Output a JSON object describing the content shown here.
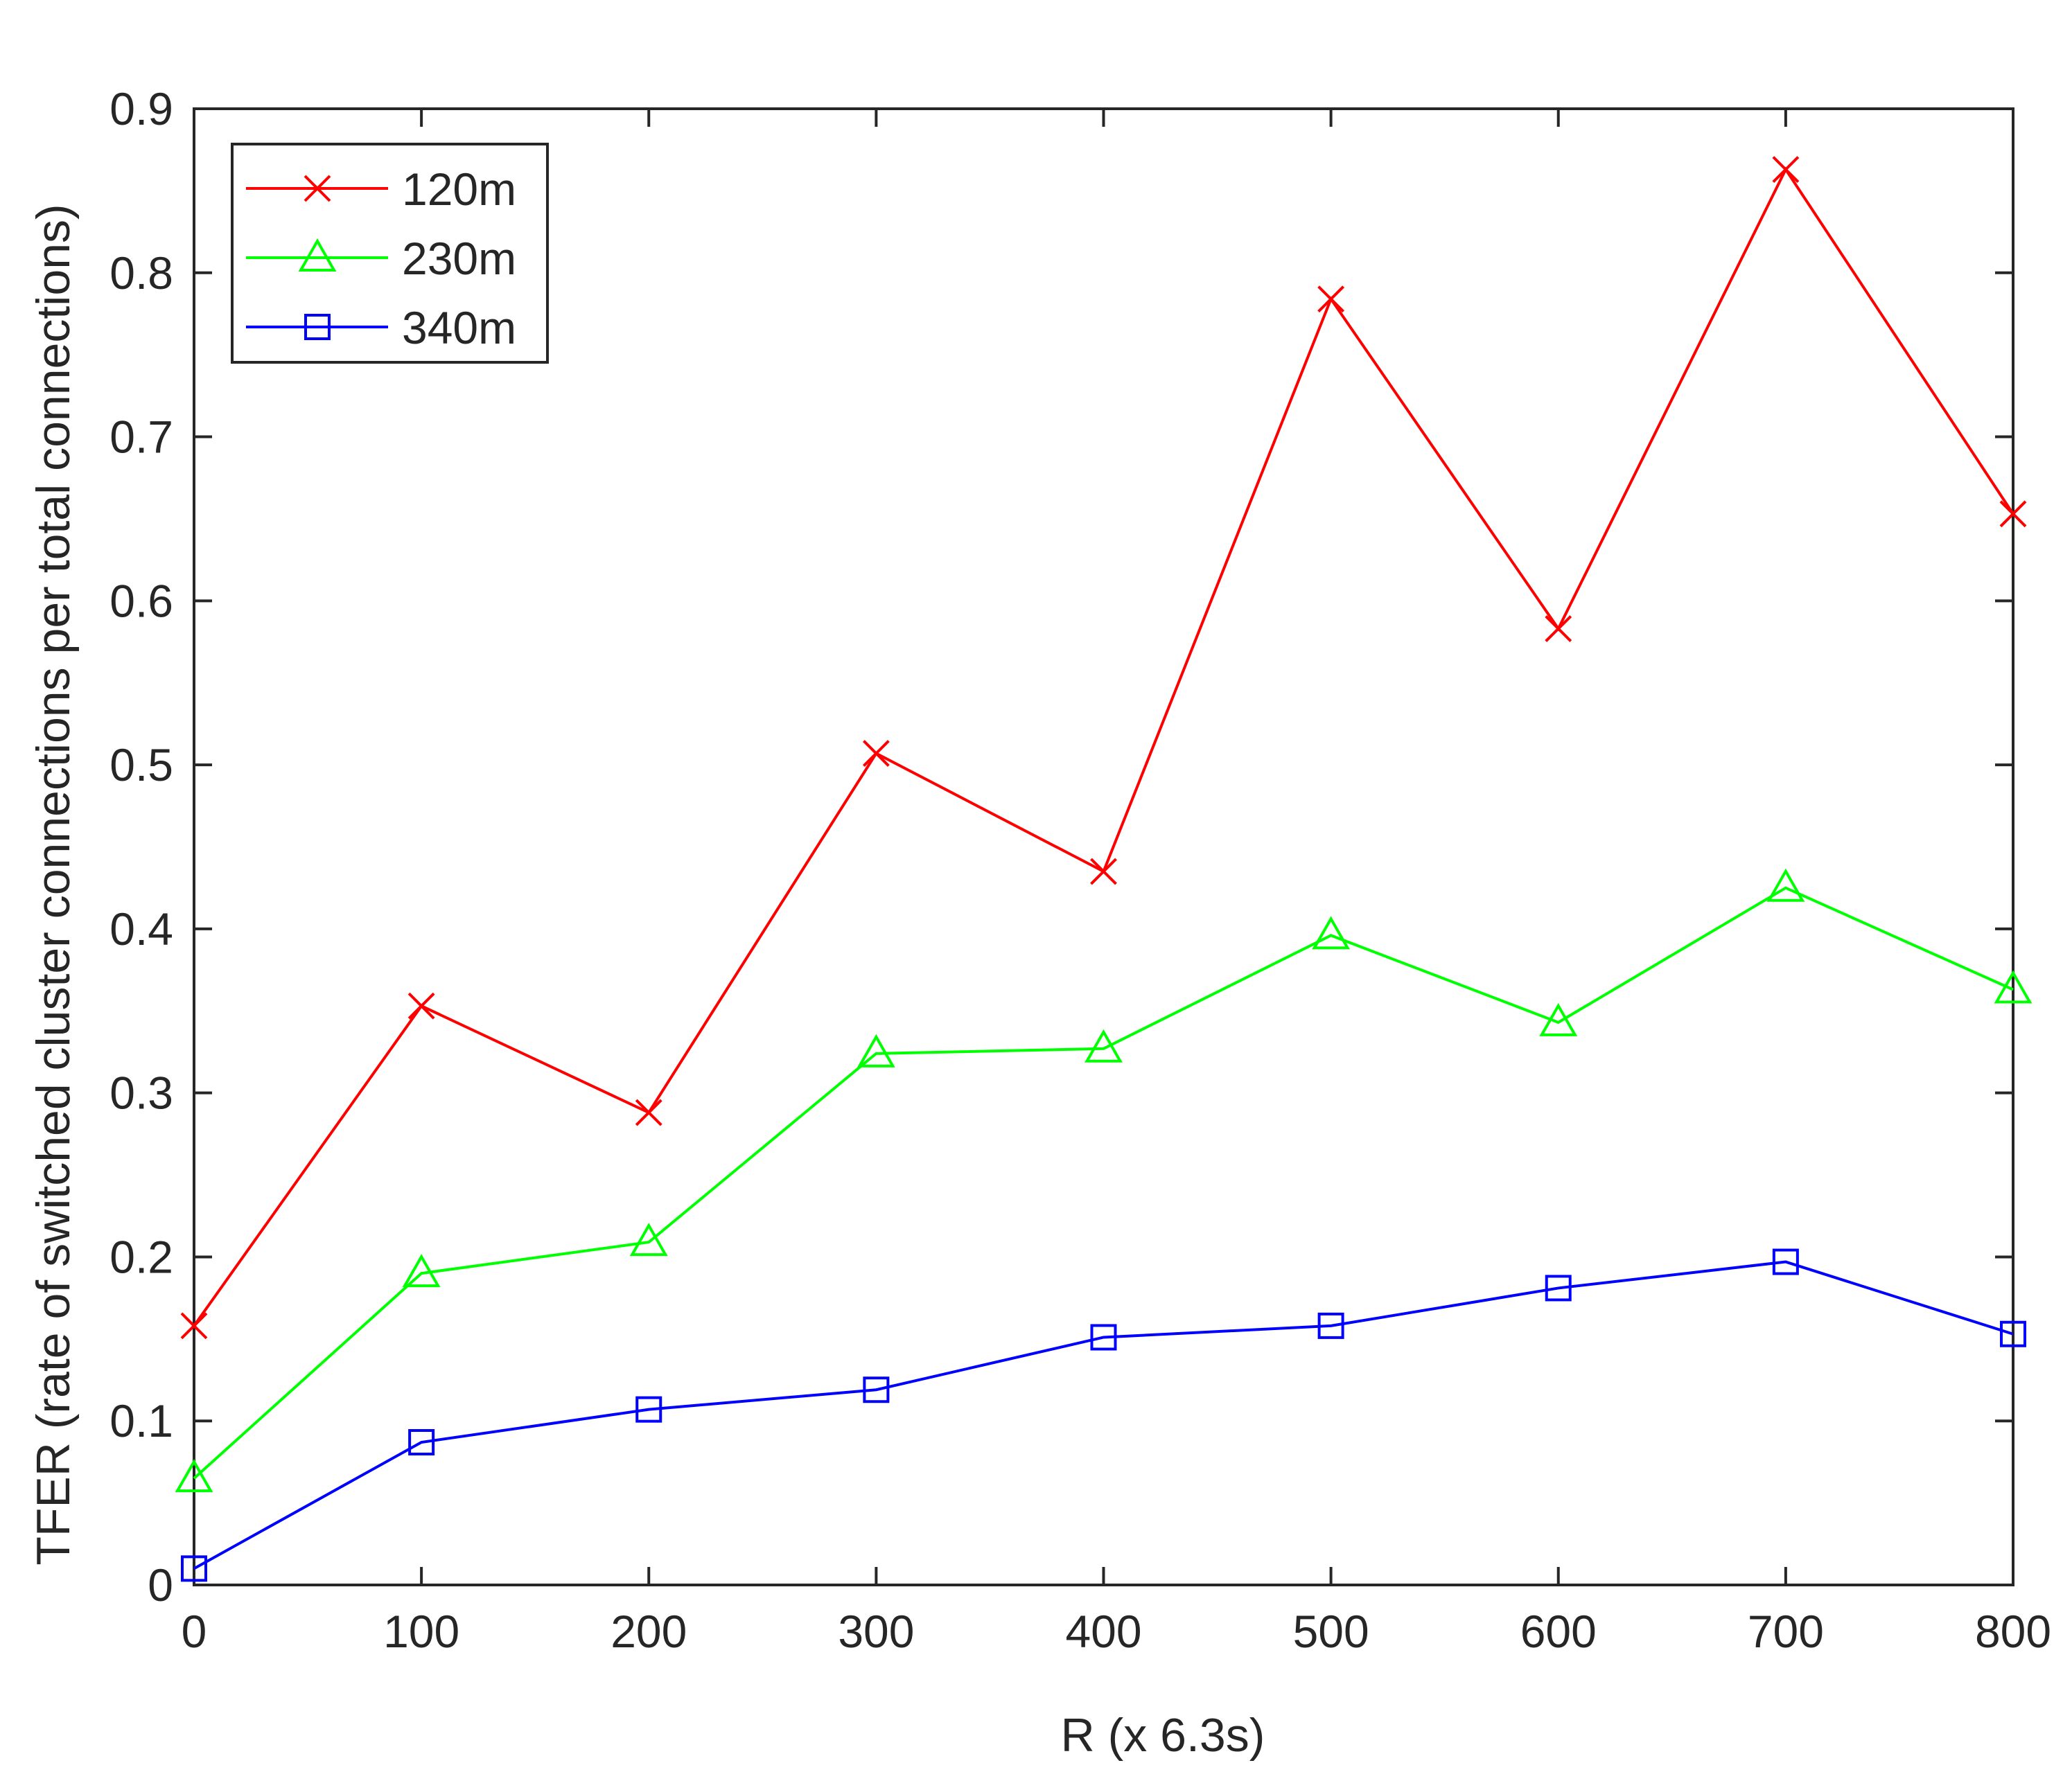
{
  "chart_data": {
    "type": "line",
    "title": "",
    "xlabel": "R (x 6.3s)",
    "ylabel": "TFER (rate of switched cluster connections per total connections)",
    "x": [
      0,
      100,
      200,
      300,
      400,
      500,
      600,
      700,
      800
    ],
    "xlim": [
      0,
      800
    ],
    "ylim": [
      0,
      0.9
    ],
    "xticks": [
      "0",
      "100",
      "200",
      "300",
      "400",
      "500",
      "600",
      "700",
      "800"
    ],
    "yticks": [
      "0",
      "0.1",
      "0.2",
      "0.3",
      "0.4",
      "0.5",
      "0.6",
      "0.7",
      "0.8",
      "0.9"
    ],
    "grid": false,
    "legend_position": "top-left",
    "series": [
      {
        "name": "120m",
        "color": "#ff0000",
        "marker": "x",
        "values": [
          0.158,
          0.353,
          0.288,
          0.507,
          0.435,
          0.784,
          0.583,
          0.863,
          0.653
        ]
      },
      {
        "name": "230m",
        "color": "#00ff00",
        "marker": "triangle",
        "values": [
          0.065,
          0.19,
          0.209,
          0.324,
          0.327,
          0.396,
          0.343,
          0.425,
          0.363
        ]
      },
      {
        "name": "340m",
        "color": "#0000ff",
        "marker": "square",
        "values": [
          0.01,
          0.087,
          0.107,
          0.119,
          0.151,
          0.158,
          0.181,
          0.197,
          0.153
        ]
      }
    ]
  }
}
